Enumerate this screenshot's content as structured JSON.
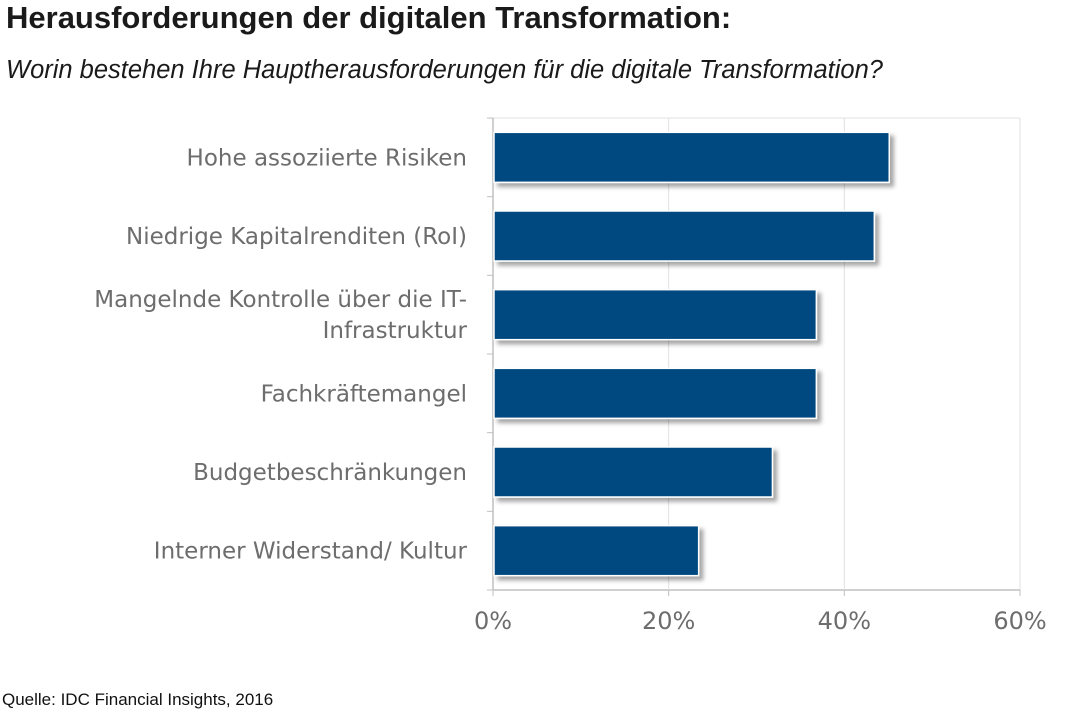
{
  "title": "Herausforderungen der digitalen Transformation:",
  "subtitle": "Worin bestehen Ihre Hauptherausforderungen für die digitale Transformation?",
  "source": "Quelle: IDC Financial Insights, 2016",
  "colors": {
    "bar": "#004a80",
    "axis": "#c0c0c0",
    "grid": "#e0e0e0",
    "text": "#6d6d6d"
  },
  "chart_data": {
    "type": "bar",
    "orientation": "horizontal",
    "title": "",
    "xlabel": "",
    "ylabel": "",
    "categories": [
      [
        "Hohe assoziierte Risiken"
      ],
      [
        "Niedrige Kapitalrenditen (RoI)"
      ],
      [
        "Mangelnde Kontrolle über die IT-",
        "Infrastruktur"
      ],
      [
        "Fachkräftemangel"
      ],
      [
        "Budgetbeschränkungen"
      ],
      [
        "Interner Widerstand/ Kultur"
      ]
    ],
    "values": [
      45,
      43.3,
      36.7,
      36.7,
      31.7,
      23.3
    ],
    "xlim": [
      0,
      60
    ],
    "ticks": [
      0,
      20,
      40,
      60
    ],
    "tick_labels": [
      "0%",
      "20%",
      "40%",
      "60%"
    ],
    "grid": true,
    "legend": "none"
  }
}
